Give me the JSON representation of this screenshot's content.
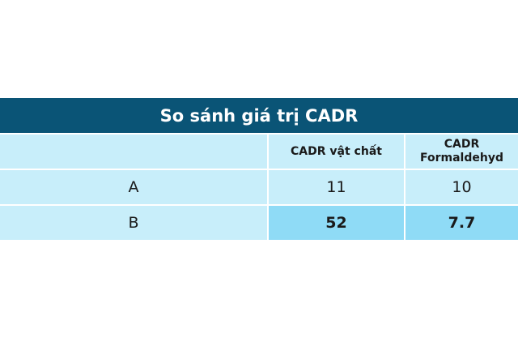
{
  "table": {
    "title": "So sánh giá trị CADR",
    "columns": [
      "",
      "CADR vật chất",
      "CADR Formaldehyd"
    ],
    "rows": [
      {
        "label": "A",
        "values": [
          "11",
          "10"
        ]
      },
      {
        "label": "B",
        "values": [
          "52",
          "7.7"
        ]
      }
    ],
    "colors": {
      "header": "#0a5476",
      "cell": "#c8eefa",
      "highlight": "#8fdbf6"
    }
  }
}
